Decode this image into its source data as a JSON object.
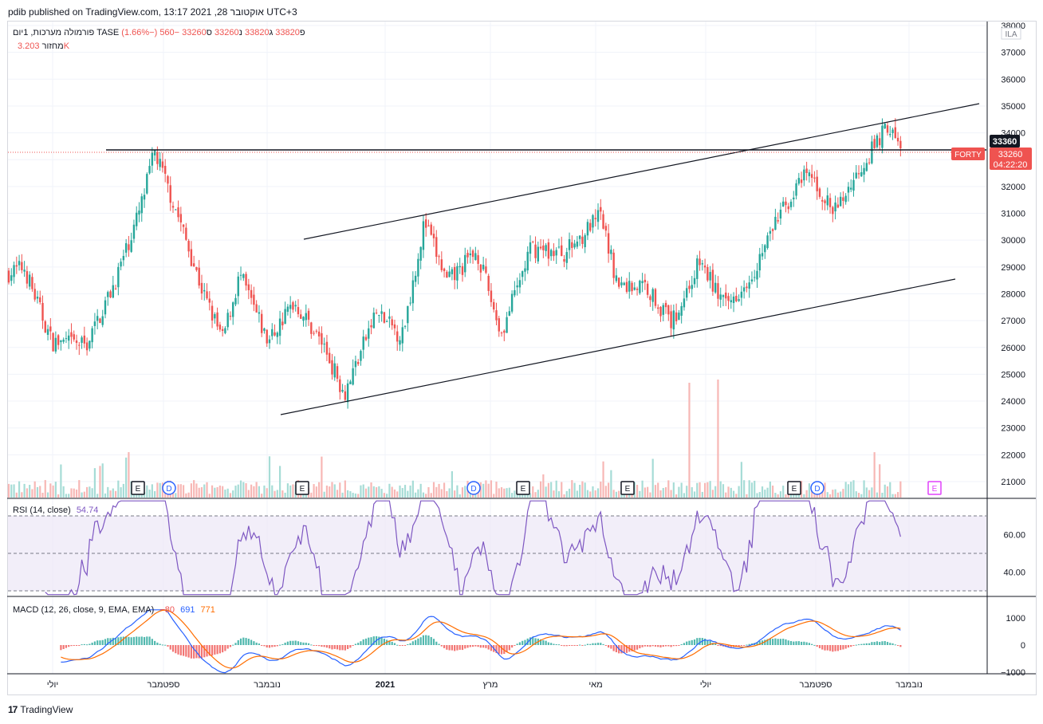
{
  "header": {
    "published": "pdib published on TradingView.com, 13:17 2021 ,28 אוקטובר UTC+3"
  },
  "main_legend": {
    "symbol": "פורמולה מערכות, 1יום  TASE",
    "o_label": "פ",
    "o_value": "33820",
    "h_label": "ג",
    "h_value": "33820",
    "l_label": "נ",
    "l_value": "33260",
    "c_label": "ס",
    "c_value": "33260",
    "change": "−560 (−1.66%)",
    "volume_label": "מחזור",
    "volume_value": "3.203K"
  },
  "rsi_legend": {
    "label": "RSI (14, close)",
    "value": "54.74"
  },
  "macd_legend": {
    "label": "MACD (12, 26, close, 9, EMA, EMA)",
    "v1": "−80",
    "v2": "691",
    "v3": "771"
  },
  "price_axis": {
    "currency": "ILA",
    "ticks": [
      "38000",
      "37000",
      "36000",
      "35000",
      "34000",
      "33000",
      "32000",
      "31000",
      "30000",
      "29000",
      "28000",
      "27000",
      "26000",
      "25000",
      "24000",
      "23000",
      "22000",
      "21000"
    ]
  },
  "price_labels": {
    "hline": "33360",
    "last": "33260",
    "countdown": "04:22:20",
    "tag": "FORTY"
  },
  "rsi_axis": {
    "ticks": [
      "60.00",
      "40.00"
    ]
  },
  "macd_axis": {
    "ticks": [
      "1000",
      "0",
      "−1000"
    ]
  },
  "time_axis": {
    "ticks": [
      "יולי",
      "ספטמבר",
      "נובמבר",
      "2021",
      "מרץ",
      "מאי",
      "יולי",
      "ספטמבר",
      "נובמבר"
    ]
  },
  "events": [
    "E",
    "D",
    "E",
    "D",
    "E",
    "E",
    "E",
    "D",
    "E"
  ],
  "footer": {
    "brand": "TradingView"
  },
  "colors": {
    "up": "#26a69a",
    "down": "#ef5350",
    "rsi": "#7e57c2",
    "macd": "#2962ff",
    "signal": "#ff6d00",
    "event_future": "#e040fb"
  },
  "chart_data": {
    "type": "candlestick",
    "symbol": "TASE",
    "interval": "1D",
    "ylim": [
      20500,
      38000
    ],
    "close_path": [
      {
        "date": "2020-06",
        "close": 28500
      },
      {
        "date": "2020-06-20",
        "close": 29000
      },
      {
        "date": "2020-07-05",
        "close": 26200
      },
      {
        "date": "2020-07-25",
        "close": 26100
      },
      {
        "date": "2020-08-10",
        "close": 28400
      },
      {
        "date": "2020-08-25",
        "close": 31200
      },
      {
        "date": "2020-09-02",
        "close": 33300
      },
      {
        "date": "2020-09-15",
        "close": 31000
      },
      {
        "date": "2020-09-30",
        "close": 28000
      },
      {
        "date": "2020-10-10",
        "close": 26300
      },
      {
        "date": "2020-10-20",
        "close": 28700
      },
      {
        "date": "2020-11-05",
        "close": 26200
      },
      {
        "date": "2020-11-20",
        "close": 27700
      },
      {
        "date": "2020-12-05",
        "close": 26200
      },
      {
        "date": "2020-12-18",
        "close": 24300
      },
      {
        "date": "2021-01-05",
        "close": 27300
      },
      {
        "date": "2021-01-20",
        "close": 26400
      },
      {
        "date": "2021-02-02",
        "close": 30700
      },
      {
        "date": "2021-02-15",
        "close": 28400
      },
      {
        "date": "2021-03-01",
        "close": 29600
      },
      {
        "date": "2021-03-15",
        "close": 26500
      },
      {
        "date": "2021-04-01",
        "close": 29700
      },
      {
        "date": "2021-04-20",
        "close": 29500
      },
      {
        "date": "2021-05-10",
        "close": 30900
      },
      {
        "date": "2021-05-20",
        "close": 28300
      },
      {
        "date": "2021-06-05",
        "close": 28300
      },
      {
        "date": "2021-06-20",
        "close": 26900
      },
      {
        "date": "2021-07-05",
        "close": 29200
      },
      {
        "date": "2021-07-20",
        "close": 27500
      },
      {
        "date": "2021-08-05",
        "close": 28900
      },
      {
        "date": "2021-08-20",
        "close": 31000
      },
      {
        "date": "2021-09-05",
        "close": 32500
      },
      {
        "date": "2021-09-20",
        "close": 31000
      },
      {
        "date": "2021-10-05",
        "close": 32800
      },
      {
        "date": "2021-10-20",
        "close": 34300
      },
      {
        "date": "2021-10-28",
        "close": 33260
      }
    ],
    "volume_spikes": [
      {
        "date": "2021-07",
        "volume": "high"
      }
    ],
    "rsi": {
      "last": 54.74,
      "levels": [
        70,
        50,
        30
      ]
    },
    "macd": {
      "macd": 691,
      "signal": 771,
      "histogram": -80
    }
  }
}
